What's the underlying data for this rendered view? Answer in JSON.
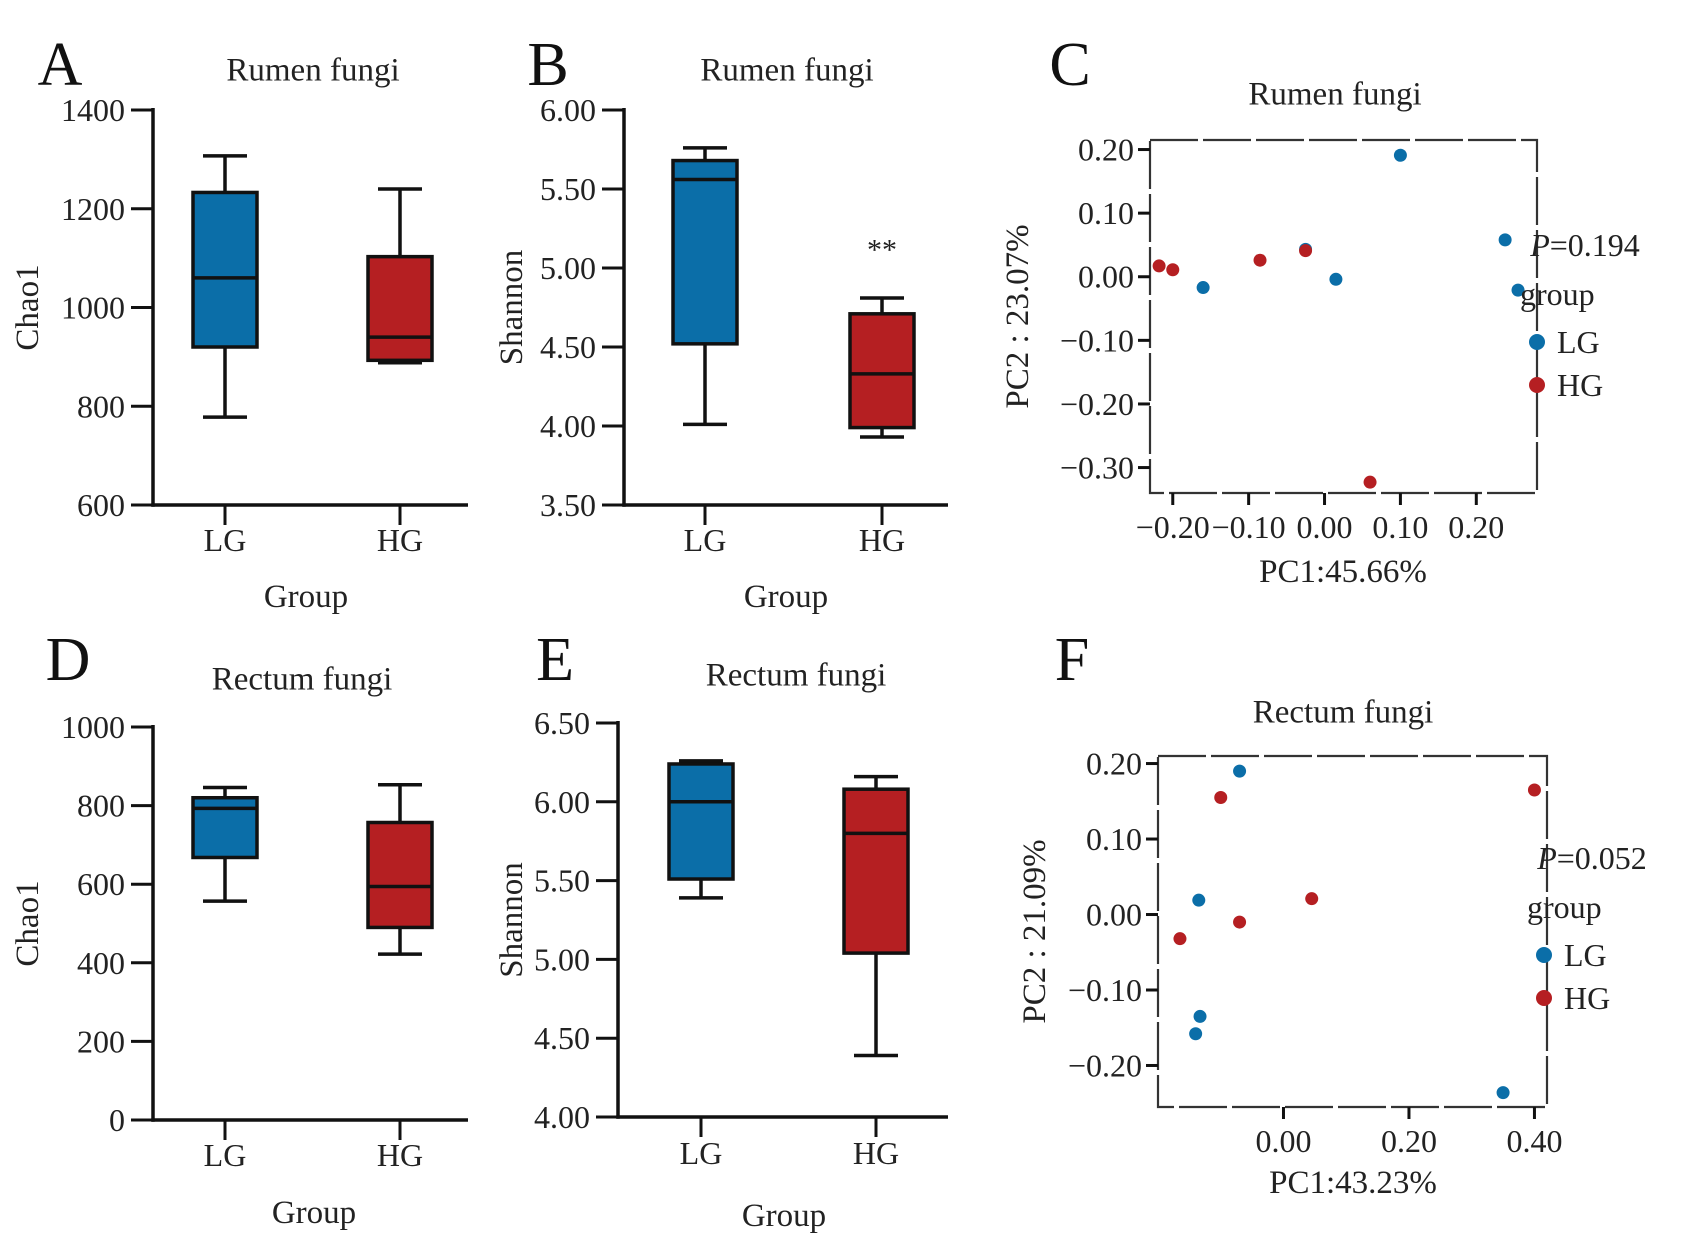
{
  "colors": {
    "LG": "#0B6EA8",
    "HG": "#B51F22"
  },
  "chart_data": [
    {
      "id": "A",
      "type": "box",
      "title": "Rumen fungi",
      "xlabel": "Group",
      "ylabel": "Chao1",
      "categories": [
        "LG",
        "HG"
      ],
      "ylim": [
        600,
        1400
      ],
      "yticks": [
        600,
        800,
        1000,
        1200,
        1400
      ],
      "tick_labels": [
        "600",
        "800",
        "1000",
        "1200",
        "1400"
      ],
      "boxes": [
        {
          "group": "LG",
          "min": 778,
          "q1": 920,
          "median": 1060,
          "q3": 1233,
          "max": 1307
        },
        {
          "group": "HG",
          "min": 888,
          "q1": 893,
          "median": 940,
          "q3": 1103,
          "max": 1240
        }
      ],
      "annotation": ""
    },
    {
      "id": "B",
      "type": "box",
      "title": "Rumen fungi",
      "xlabel": "Group",
      "ylabel": "Shannon",
      "categories": [
        "LG",
        "HG"
      ],
      "ylim": [
        3.5,
        6.0
      ],
      "yticks": [
        3.5,
        4.0,
        4.5,
        5.0,
        5.5,
        6.0
      ],
      "tick_labels": [
        "3.50",
        "4.00",
        "4.50",
        "5.00",
        "5.50",
        "6.00"
      ],
      "boxes": [
        {
          "group": "LG",
          "min": 4.01,
          "q1": 4.52,
          "median": 5.56,
          "q3": 5.68,
          "max": 5.76
        },
        {
          "group": "HG",
          "min": 3.93,
          "q1": 3.99,
          "median": 4.33,
          "q3": 4.71,
          "max": 4.81
        }
      ],
      "annotation": "**"
    },
    {
      "id": "C",
      "type": "scatter",
      "title": "Rumen fungi",
      "xlabel": "PC1:45.66%",
      "ylabel": "PC2 : 23.07%",
      "xlim": [
        -0.23,
        0.28
      ],
      "ylim": [
        -0.34,
        0.215
      ],
      "xticks": [
        -0.2,
        -0.1,
        0.0,
        0.1,
        0.2
      ],
      "xtick_labels": [
        "−0.20",
        "−0.10",
        "0.00",
        "0.10",
        "0.20"
      ],
      "yticks": [
        0.2,
        0.1,
        0.0,
        -0.1,
        -0.2,
        -0.3
      ],
      "ytick_labels": [
        "0.20",
        "0.10",
        "0.00",
        "−0.10",
        "−0.20",
        "−0.30"
      ],
      "series": [
        {
          "name": "LG",
          "x": [
            0.1,
            0.238,
            0.255,
            -0.16,
            0.015,
            -0.025
          ],
          "y": [
            0.191,
            0.058,
            -0.021,
            -0.017,
            -0.004,
            0.043
          ]
        },
        {
          "name": "HG",
          "x": [
            -0.218,
            -0.2,
            -0.085,
            -0.025,
            0.06
          ],
          "y": [
            0.017,
            0.011,
            0.026,
            0.041,
            -0.323
          ]
        }
      ],
      "p_label": "P",
      "p_value": "=0.194",
      "legend_title": "group",
      "legend_position": "right"
    },
    {
      "id": "D",
      "type": "box",
      "title": "Rectum fungi",
      "xlabel": "Group",
      "ylabel": "Chao1",
      "categories": [
        "LG",
        "HG"
      ],
      "ylim": [
        0,
        1000
      ],
      "yticks": [
        0,
        200,
        400,
        600,
        800,
        1000
      ],
      "tick_labels": [
        "0",
        "200",
        "400",
        "600",
        "800",
        "1000"
      ],
      "boxes": [
        {
          "group": "LG",
          "min": 557,
          "q1": 668,
          "median": 793,
          "q3": 820,
          "max": 846
        },
        {
          "group": "HG",
          "min": 422,
          "q1": 490,
          "median": 594,
          "q3": 757,
          "max": 853
        }
      ],
      "annotation": ""
    },
    {
      "id": "E",
      "type": "box",
      "title": "Rectum fungi",
      "xlabel": "Group",
      "ylabel": "Shannon",
      "categories": [
        "LG",
        "HG"
      ],
      "ylim": [
        4.0,
        6.5
      ],
      "yticks": [
        4.0,
        4.5,
        5.0,
        5.5,
        6.0,
        6.5
      ],
      "tick_labels": [
        "4.00",
        "4.50",
        "5.00",
        "5.50",
        "6.00",
        "6.50"
      ],
      "boxes": [
        {
          "group": "LG",
          "min": 5.39,
          "q1": 5.51,
          "median": 6.0,
          "q3": 6.24,
          "max": 6.26
        },
        {
          "group": "HG",
          "min": 4.39,
          "q1": 5.04,
          "median": 5.8,
          "q3": 6.08,
          "max": 6.16
        }
      ],
      "annotation": ""
    },
    {
      "id": "F",
      "type": "scatter",
      "title": "Rectum fungi",
      "xlabel": "PC1:43.23%",
      "ylabel": "PC2 : 21.09%",
      "xlim": [
        -0.2,
        0.42
      ],
      "ylim": [
        -0.255,
        0.21
      ],
      "xticks": [
        0.0,
        0.2,
        0.4
      ],
      "xtick_labels": [
        "0.00",
        "0.20",
        "0.40"
      ],
      "yticks": [
        0.2,
        0.1,
        0.0,
        -0.1,
        -0.2
      ],
      "ytick_labels": [
        "0.20",
        "0.10",
        "0.00",
        "−0.10",
        "−0.20"
      ],
      "series": [
        {
          "name": "LG",
          "x": [
            -0.07,
            -0.135,
            -0.133,
            -0.14,
            0.35
          ],
          "y": [
            0.19,
            0.019,
            -0.135,
            -0.158,
            -0.236
          ]
        },
        {
          "name": "HG",
          "x": [
            -0.1,
            -0.165,
            -0.07,
            0.045,
            0.4
          ],
          "y": [
            0.155,
            -0.032,
            -0.01,
            0.021,
            0.165
          ]
        }
      ],
      "p_label": "P",
      "p_value": "=0.052",
      "legend_title": "group",
      "legend_position": "right"
    }
  ]
}
